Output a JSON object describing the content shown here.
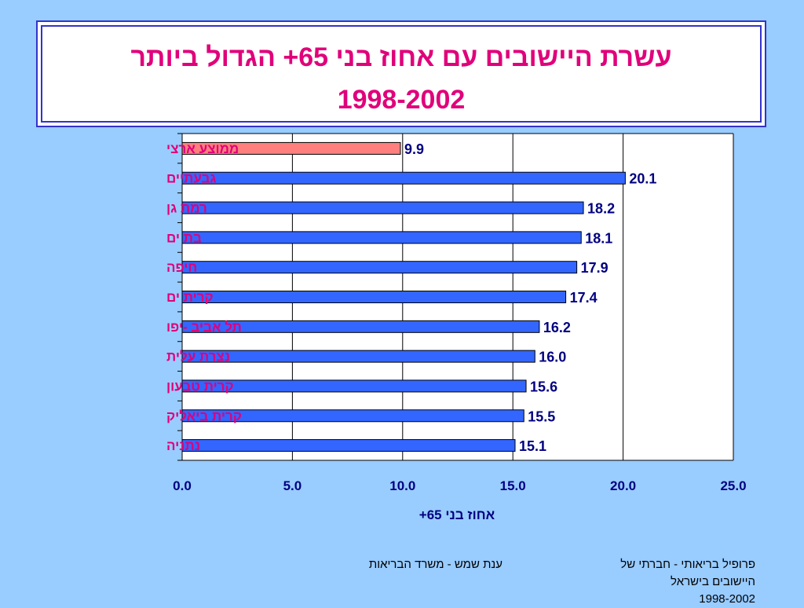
{
  "chart_data": {
    "type": "bar",
    "orientation": "horizontal",
    "title": "עשרת היישובים עם אחוז בני 65+ הגדול ביותר",
    "subtitle": "1998-2002",
    "xlabel": "אחוז בני 65+",
    "ylabel": "",
    "xlim": [
      0,
      25
    ],
    "xticks": [
      "0.0",
      "5.0",
      "10.0",
      "15.0",
      "20.0",
      "25.0"
    ],
    "grid": "vertical",
    "categories": [
      "ממוצע ארצי",
      "גבעתיים",
      "רמת גן",
      "בת ים",
      "חיפה",
      "קרית ים",
      "תל אביב -יפו",
      "נצרת עלית",
      "קרית טבעון",
      "קרית ביאליק",
      "נתניה"
    ],
    "values": [
      9.9,
      20.1,
      18.2,
      18.1,
      17.9,
      17.4,
      16.2,
      16.0,
      15.6,
      15.5,
      15.1
    ],
    "value_labels": [
      "9.9",
      "20.1",
      "18.2",
      "18.1",
      "17.9",
      "17.4",
      "16.2",
      "16.0",
      "15.6",
      "15.5",
      "15.1"
    ],
    "colors": {
      "highlight_bar": "#ff7f7f",
      "bar": "#3366ff",
      "category_label": "#e0007a",
      "tick_label": "#000080",
      "title": "#e0007a"
    }
  },
  "footer": {
    "author": "ענת שמש - משרד הבריאות",
    "source_line1": "פרופיל בריאותי - חברתי של",
    "source_line2": "היישובים בישראל",
    "source_line3": "1998-2002"
  }
}
